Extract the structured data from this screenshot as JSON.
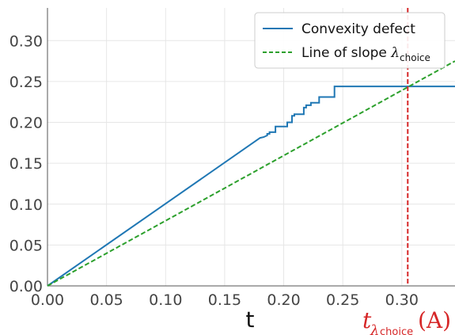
{
  "chart_data": {
    "type": "line",
    "title": "",
    "xlabel": "t",
    "ylabel": "",
    "xlim": [
      0.0,
      0.345
    ],
    "ylim": [
      0.0,
      0.34
    ],
    "x_ticks": [
      "0.00",
      "0.05",
      "0.10",
      "0.15",
      "0.20",
      "0.25",
      "0.30"
    ],
    "y_ticks": [
      "0.00",
      "0.05",
      "0.10",
      "0.15",
      "0.20",
      "0.25",
      "0.30"
    ],
    "grid": true,
    "legend_position": "top-right",
    "series": [
      {
        "name": "Convexity defect",
        "color": "#1f77b4",
        "style": "solid",
        "x": [
          0.0,
          0.18,
          0.183,
          0.186,
          0.186,
          0.188,
          0.188,
          0.193,
          0.193,
          0.203,
          0.203,
          0.207,
          0.207,
          0.209,
          0.209,
          0.217,
          0.217,
          0.219,
          0.219,
          0.223,
          0.223,
          0.23,
          0.23,
          0.243,
          0.243,
          0.345
        ],
        "y": [
          0.0,
          0.181,
          0.182,
          0.184,
          0.186,
          0.186,
          0.188,
          0.188,
          0.195,
          0.195,
          0.2,
          0.2,
          0.208,
          0.208,
          0.21,
          0.21,
          0.218,
          0.218,
          0.221,
          0.221,
          0.224,
          0.224,
          0.231,
          0.231,
          0.244,
          0.244
        ]
      },
      {
        "name": "Line of slope λ_choice",
        "legend_main": "Line of slope ",
        "legend_symbol": "λ",
        "legend_sub": "choice",
        "color": "#2ca02c",
        "style": "dashed",
        "x": [
          0.0,
          0.345
        ],
        "y": [
          0.0,
          0.275
        ]
      }
    ],
    "vertical_line": {
      "x": 0.305,
      "color": "#d62728",
      "style": "dashed",
      "label_main": "t",
      "label_sub": "λ",
      "label_subsub": "choice",
      "label_arg": "(A)"
    }
  }
}
